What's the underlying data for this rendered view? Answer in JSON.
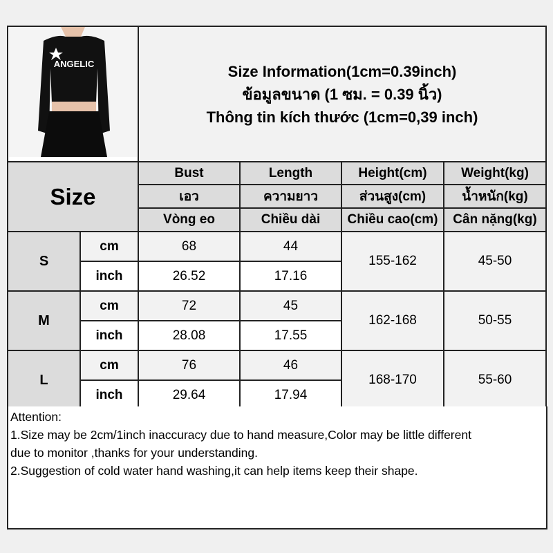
{
  "product_image": {
    "logo_text": "ANGELIC",
    "description_icon": "cropped-long-sleeve-top-photo"
  },
  "title": {
    "line1": "Size Information(1cm=0.39inch)",
    "line2": "ข้อมูลขนาด (1 ซม. = 0.39 นิ้ว)",
    "line3": "Thông tin kích thước (1cm=0,39 inch)"
  },
  "size_label": "Size",
  "headers": [
    [
      "Bust",
      "Length",
      "Height(cm)",
      "Weight(kg)"
    ],
    [
      "เอว",
      "ความยาว",
      "ส่วนสูง(cm)",
      "น้ำหนัก(kg)"
    ],
    [
      "Vòng eo",
      "Chiều dài",
      "Chiều cao(cm)",
      "Cân nặng(kg)"
    ]
  ],
  "rows": [
    {
      "size": "S",
      "cm_label": "cm",
      "inch_label": "inch",
      "bust_cm": "68",
      "length_cm": "44",
      "bust_inch": "26.52",
      "length_inch": "17.16",
      "height": "155-162",
      "weight": "45-50"
    },
    {
      "size": "M",
      "cm_label": "cm",
      "inch_label": "inch",
      "bust_cm": "72",
      "length_cm": "45",
      "bust_inch": "28.08",
      "length_inch": "17.55",
      "height": "162-168",
      "weight": "50-55"
    },
    {
      "size": "L",
      "cm_label": "cm",
      "inch_label": "inch",
      "bust_cm": "76",
      "length_cm": "46",
      "bust_inch": "29.64",
      "length_inch": "17.94",
      "height": "168-170",
      "weight": "55-60"
    }
  ],
  "attention": {
    "heading": "Attention:",
    "line1": "1.Size may be 2cm/1inch inaccuracy due to hand measure,Color may be little different",
    "line2": "due to monitor ,thanks for your understanding.",
    "line3": "2.Suggestion of cold water hand washing,it can help items keep their shape."
  }
}
